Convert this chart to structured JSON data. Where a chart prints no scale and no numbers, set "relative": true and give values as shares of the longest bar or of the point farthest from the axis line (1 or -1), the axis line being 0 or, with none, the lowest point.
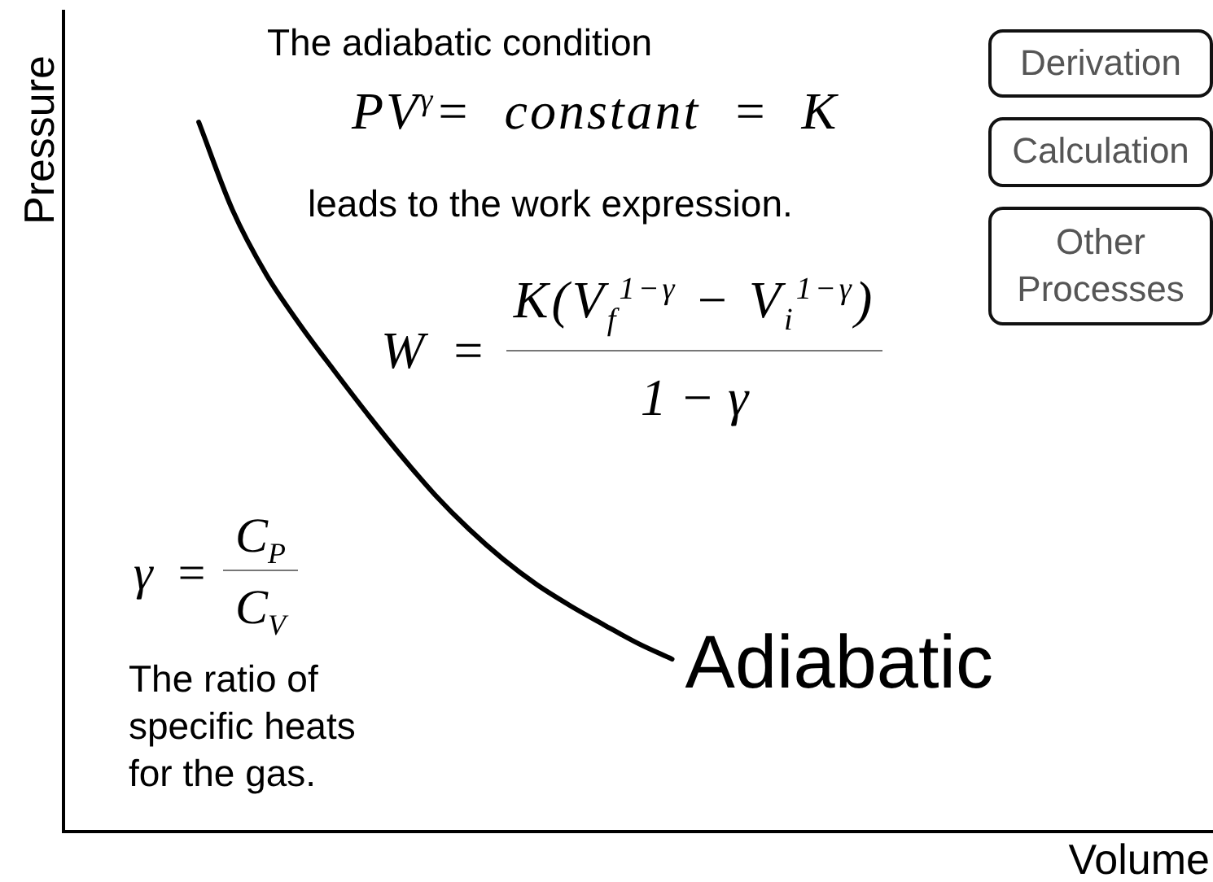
{
  "chart_data": {
    "type": "line",
    "relative": true,
    "xlabel": "Volume",
    "ylabel": "Pressure",
    "categories": [
      null,
      null,
      null,
      null,
      null,
      null,
      null,
      null,
      null,
      null,
      null,
      null,
      null,
      null,
      null,
      null,
      null,
      null,
      null,
      null,
      null,
      null,
      null,
      null,
      null,
      null,
      null,
      null,
      null,
      null,
      null,
      null,
      null,
      null,
      null
    ],
    "series": [
      {
        "name": "Adiabatic",
        "color": "#000000",
        "values": [
          null,
          null,
          null,
          null,
          1,
          0.876,
          0.785,
          0.714,
          0.65,
          0.588,
          0.529,
          0.474,
          0.426,
          0.384,
          0.348,
          0.318,
          0.291,
          0.265,
          0.243,
          null,
          null,
          null,
          null,
          null,
          null,
          null,
          null,
          null,
          null,
          null,
          null,
          null,
          null,
          null,
          null
        ]
      }
    ],
    "annotations": [
      "The adiabatic condition",
      "PV$^{γ}$= constant = K",
      "leads to the work expression.",
      "W =",
      "K(V$_{f}$$^{1−γ}$ − V$_{i}$$^{1−γ}$)",
      "1 − γ",
      "γ =",
      "C$_{P}$",
      "C$_{V}$",
      "The ratio of specific heats for the gas.",
      "Derivation",
      "Calculation",
      "Other Processes"
    ]
  }
}
